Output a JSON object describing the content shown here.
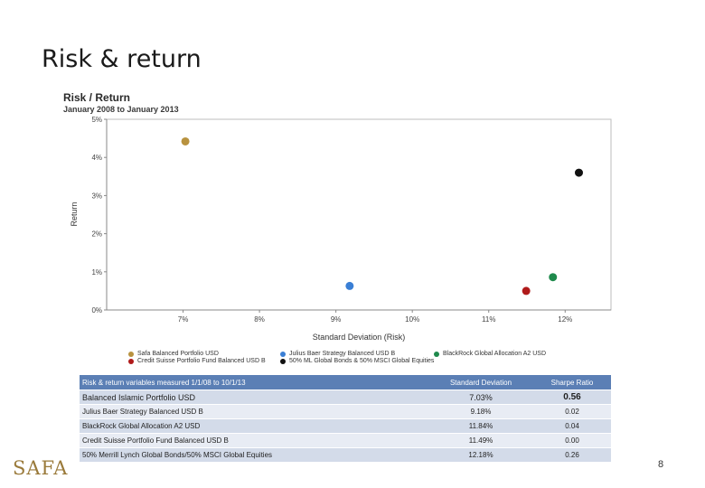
{
  "slide": {
    "title": "Risk & return",
    "page_number": "8",
    "logo_text": "SAFA"
  },
  "chart_data": {
    "type": "scatter",
    "title": "Risk / Return",
    "subtitle": "January 2008 to January 2013",
    "xlabel": "Standard Deviation (Risk)",
    "ylabel": "Return",
    "xlim": [
      6.0,
      12.6
    ],
    "ylim": [
      0,
      5
    ],
    "x_ticks": [
      7,
      8,
      9,
      10,
      11,
      12
    ],
    "x_tick_labels": [
      "7%",
      "8%",
      "9%",
      "10%",
      "11%",
      "12%"
    ],
    "y_ticks": [
      0,
      1,
      2,
      3,
      4,
      5
    ],
    "y_tick_labels": [
      "0%",
      "1%",
      "2%",
      "3%",
      "4%",
      "5%"
    ],
    "grid": false,
    "legend_position": "bottom",
    "series": [
      {
        "name": "Safa Balanced Portfolio USD",
        "color": "#b8923f",
        "x": 7.03,
        "y": 4.42
      },
      {
        "name": "Julius Baer Strategy Balanced USD B",
        "color": "#3a7fd5",
        "x": 9.18,
        "y": 0.63
      },
      {
        "name": "BlackRock Global Allocation A2 USD",
        "color": "#1f8a4c",
        "x": 11.84,
        "y": 0.86
      },
      {
        "name": "Credit Suisse Portfolio Fund Balanced USD B",
        "color": "#b01a1a",
        "x": 11.49,
        "y": 0.5
      },
      {
        "name": "50% ML Global Bonds & 50% MSCI Global Equities",
        "color": "#111111",
        "x": 12.18,
        "y": 3.6
      }
    ]
  },
  "table": {
    "header": {
      "label": "Risk & return variables measured 1/1/08 to 10/1/13",
      "std_dev": "Standard Deviation",
      "sharpe": "Sharpe Ratio"
    },
    "rows": [
      {
        "name": "Balanced Islamic Portfolio USD",
        "std_dev": "7.03%",
        "sharpe": "0.56"
      },
      {
        "name": "Julius Baer Strategy Balanced USD B",
        "std_dev": "9.18%",
        "sharpe": "0.02"
      },
      {
        "name": "BlackRock Global Allocation A2 USD",
        "std_dev": "11.84%",
        "sharpe": "0.04"
      },
      {
        "name": "Credit Suisse Portfolio Fund Balanced USD B",
        "std_dev": "11.49%",
        "sharpe": "0.00"
      },
      {
        "name": "50% Merrill Lynch Global Bonds/50% MSCI Global Equities",
        "std_dev": "12.18%",
        "sharpe": "0.26"
      }
    ]
  }
}
